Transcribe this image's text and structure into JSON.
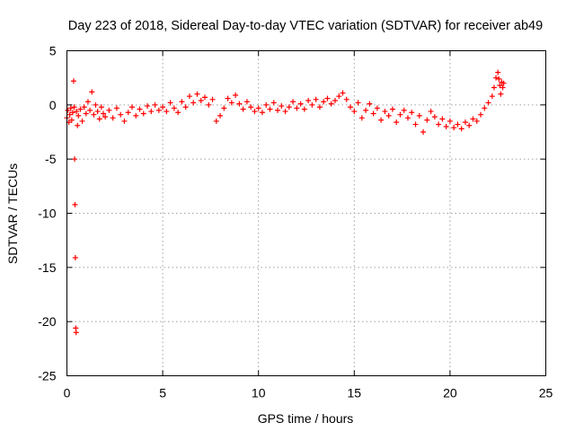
{
  "chart_data": {
    "type": "scatter",
    "title": "Day 223 of 2018, Sidereal Day-to-day VTEC variation (SDTVAR) for receiver ab49",
    "xlabel": "GPS time / hours",
    "ylabel": "SDTVAR / TECUs",
    "xlim": [
      0,
      25
    ],
    "ylim": [
      -25,
      5
    ],
    "xticks": [
      0,
      5,
      10,
      15,
      20,
      25
    ],
    "yticks": [
      5,
      0,
      -5,
      -10,
      -15,
      -20,
      -25
    ],
    "xtick_labels": [
      "0",
      "5",
      "10",
      "15",
      "20",
      "25"
    ],
    "ytick_labels": [
      "5",
      "0",
      "-5",
      "-10",
      "-15",
      "-20",
      "-25"
    ],
    "grid": true,
    "marker": "plus",
    "color": "#ff0000",
    "series": [
      {
        "name": "SDTVAR",
        "points": [
          [
            0.0,
            -1.2
          ],
          [
            0.05,
            -0.5
          ],
          [
            0.1,
            -1.6
          ],
          [
            0.15,
            -0.9
          ],
          [
            0.2,
            -0.3
          ],
          [
            0.25,
            -1.4
          ],
          [
            0.3,
            -0.7
          ],
          [
            0.35,
            2.2
          ],
          [
            0.38,
            -0.2
          ],
          [
            0.4,
            -5.0
          ],
          [
            0.42,
            -9.2
          ],
          [
            0.44,
            -14.1
          ],
          [
            0.46,
            -20.6
          ],
          [
            0.48,
            -21.0
          ],
          [
            0.5,
            -0.6
          ],
          [
            0.55,
            -1.9
          ],
          [
            0.6,
            -1.0
          ],
          [
            0.7,
            -0.4
          ],
          [
            0.8,
            -1.5
          ],
          [
            0.9,
            -0.2
          ],
          [
            1.0,
            -0.8
          ],
          [
            1.1,
            0.3
          ],
          [
            1.2,
            -0.5
          ],
          [
            1.3,
            1.2
          ],
          [
            1.4,
            -0.9
          ],
          [
            1.5,
            0.0
          ],
          [
            1.6,
            -0.6
          ],
          [
            1.7,
            -1.3
          ],
          [
            1.8,
            -0.2
          ],
          [
            1.9,
            -0.8
          ],
          [
            2.0,
            -1.1
          ],
          [
            2.2,
            -0.5
          ],
          [
            2.4,
            -1.2
          ],
          [
            2.6,
            -0.3
          ],
          [
            2.8,
            -0.9
          ],
          [
            3.0,
            -1.5
          ],
          [
            3.2,
            -0.7
          ],
          [
            3.4,
            -0.2
          ],
          [
            3.6,
            -1.0
          ],
          [
            3.8,
            -0.4
          ],
          [
            4.0,
            -0.8
          ],
          [
            4.2,
            -0.1
          ],
          [
            4.4,
            -0.6
          ],
          [
            4.6,
            0.0
          ],
          [
            4.8,
            -0.5
          ],
          [
            5.0,
            -0.2
          ],
          [
            5.2,
            -0.6
          ],
          [
            5.4,
            0.2
          ],
          [
            5.6,
            -0.3
          ],
          [
            5.8,
            -0.7
          ],
          [
            6.0,
            0.3
          ],
          [
            6.2,
            -0.2
          ],
          [
            6.4,
            0.8
          ],
          [
            6.6,
            0.2
          ],
          [
            6.8,
            1.0
          ],
          [
            7.0,
            0.4
          ],
          [
            7.2,
            0.7
          ],
          [
            7.4,
            0.0
          ],
          [
            7.6,
            0.5
          ],
          [
            7.8,
            -1.5
          ],
          [
            8.0,
            -1.0
          ],
          [
            8.2,
            -0.3
          ],
          [
            8.4,
            0.6
          ],
          [
            8.6,
            0.2
          ],
          [
            8.8,
            0.9
          ],
          [
            9.0,
            0.1
          ],
          [
            9.2,
            -0.4
          ],
          [
            9.4,
            0.3
          ],
          [
            9.6,
            -0.2
          ],
          [
            9.8,
            -0.6
          ],
          [
            10.0,
            -0.3
          ],
          [
            10.2,
            -0.7
          ],
          [
            10.4,
            0.0
          ],
          [
            10.6,
            -0.4
          ],
          [
            10.8,
            0.2
          ],
          [
            11.0,
            -0.5
          ],
          [
            11.2,
            -0.1
          ],
          [
            11.4,
            -0.6
          ],
          [
            11.6,
            -0.2
          ],
          [
            11.8,
            0.3
          ],
          [
            12.0,
            -0.3
          ],
          [
            12.2,
            0.1
          ],
          [
            12.4,
            -0.4
          ],
          [
            12.6,
            0.4
          ],
          [
            12.8,
            0.0
          ],
          [
            13.0,
            0.5
          ],
          [
            13.2,
            -0.2
          ],
          [
            13.4,
            0.3
          ],
          [
            13.6,
            0.6
          ],
          [
            13.8,
            0.1
          ],
          [
            14.0,
            0.4
          ],
          [
            14.2,
            0.8
          ],
          [
            14.4,
            1.1
          ],
          [
            14.6,
            0.5
          ],
          [
            14.8,
            -0.2
          ],
          [
            15.0,
            -0.6
          ],
          [
            15.2,
            0.2
          ],
          [
            15.4,
            -1.2
          ],
          [
            15.6,
            -0.5
          ],
          [
            15.8,
            0.1
          ],
          [
            16.0,
            -0.8
          ],
          [
            16.2,
            -0.3
          ],
          [
            16.4,
            -1.4
          ],
          [
            16.6,
            -0.6
          ],
          [
            16.8,
            -1.0
          ],
          [
            17.0,
            -0.4
          ],
          [
            17.2,
            -1.6
          ],
          [
            17.4,
            -0.9
          ],
          [
            17.6,
            -0.5
          ],
          [
            17.8,
            -1.2
          ],
          [
            18.0,
            -0.7
          ],
          [
            18.2,
            -1.8
          ],
          [
            18.4,
            -1.0
          ],
          [
            18.6,
            -2.5
          ],
          [
            18.8,
            -1.4
          ],
          [
            19.0,
            -0.6
          ],
          [
            19.2,
            -1.1
          ],
          [
            19.4,
            -1.8
          ],
          [
            19.6,
            -1.3
          ],
          [
            19.8,
            -2.0
          ],
          [
            20.0,
            -1.5
          ],
          [
            20.2,
            -2.1
          ],
          [
            20.4,
            -1.8
          ],
          [
            20.6,
            -2.2
          ],
          [
            20.8,
            -1.6
          ],
          [
            21.0,
            -1.9
          ],
          [
            21.2,
            -1.3
          ],
          [
            21.4,
            -1.5
          ],
          [
            21.6,
            -0.9
          ],
          [
            21.8,
            -0.3
          ],
          [
            22.0,
            0.2
          ],
          [
            22.2,
            0.8
          ],
          [
            22.3,
            1.6
          ],
          [
            22.4,
            2.5
          ],
          [
            22.5,
            3.0
          ],
          [
            22.55,
            2.4
          ],
          [
            22.6,
            1.8
          ],
          [
            22.65,
            1.0
          ],
          [
            22.7,
            2.1
          ],
          [
            22.75,
            1.6
          ],
          [
            22.8,
            2.0
          ]
        ]
      }
    ]
  }
}
